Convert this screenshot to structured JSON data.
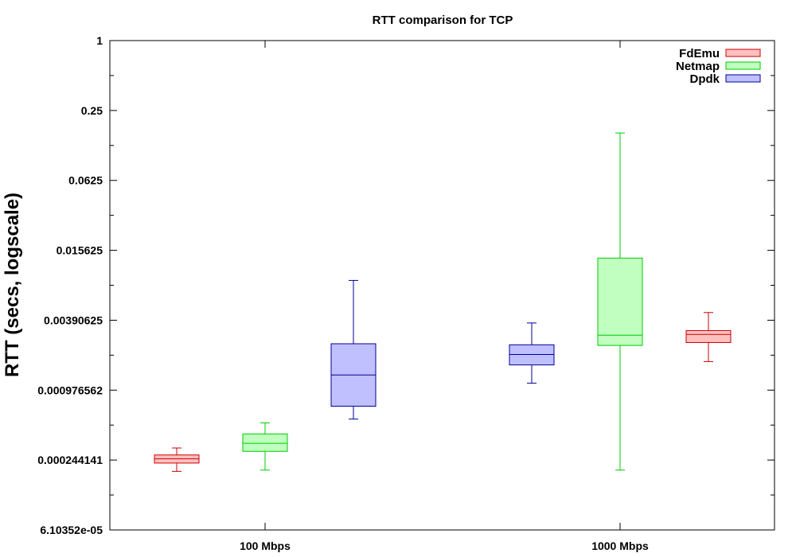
{
  "chart_data": {
    "type": "box",
    "title": "RTT comparison for TCP",
    "ylabel": "RTT (secs, logscale)",
    "xlabel": "",
    "y_scale": "log2",
    "ylim": [
      6.10352e-05,
      1
    ],
    "y_ticks": [
      {
        "value": 1,
        "label": "1"
      },
      {
        "value": 0.25,
        "label": "0.25"
      },
      {
        "value": 0.0625,
        "label": "0.0625"
      },
      {
        "value": 0.015625,
        "label": "0.015625"
      },
      {
        "value": 0.00390625,
        "label": "0.00390625"
      },
      {
        "value": 0.0009765625,
        "label": "0.000976562"
      },
      {
        "value": 0.000244140625,
        "label": "0.000244141"
      },
      {
        "value": 6.103515625e-05,
        "label": "6.10352e-05"
      }
    ],
    "categories": [
      "100 Mbps",
      "1000 Mbps"
    ],
    "legend_position": "top-right",
    "series": [
      {
        "name": "FdEmu",
        "stroke": "#cc0000",
        "fill": "#ffc0c0",
        "boxes": [
          {
            "category": "100 Mbps",
            "min": 0.000195,
            "q1": 0.00023,
            "median": 0.00025,
            "q3": 0.00027,
            "max": 0.00031
          },
          {
            "category": "1000 Mbps",
            "min": 0.00172,
            "q1": 0.00251,
            "median": 0.00295,
            "q3": 0.00318,
            "max": 0.00455
          }
        ]
      },
      {
        "name": "Netmap",
        "stroke": "#00cc00",
        "fill": "#c0ffc0",
        "boxes": [
          {
            "category": "100 Mbps",
            "min": 0.0002,
            "q1": 0.00029,
            "median": 0.00034,
            "q3": 0.00041,
            "max": 0.00051
          },
          {
            "category": "1000 Mbps",
            "min": 0.0002,
            "q1": 0.00237,
            "median": 0.0029,
            "q3": 0.0134,
            "max": 0.16
          }
        ]
      },
      {
        "name": "Dpdk",
        "stroke": "#000099",
        "fill": "#c0c0ff",
        "boxes": [
          {
            "category": "100 Mbps",
            "min": 0.00055,
            "q1": 0.00071,
            "median": 0.00132,
            "q3": 0.00245,
            "max": 0.0086
          },
          {
            "category": "1000 Mbps",
            "min": 0.00112,
            "q1": 0.00161,
            "median": 0.00198,
            "q3": 0.0024,
            "max": 0.0037
          }
        ]
      }
    ]
  }
}
